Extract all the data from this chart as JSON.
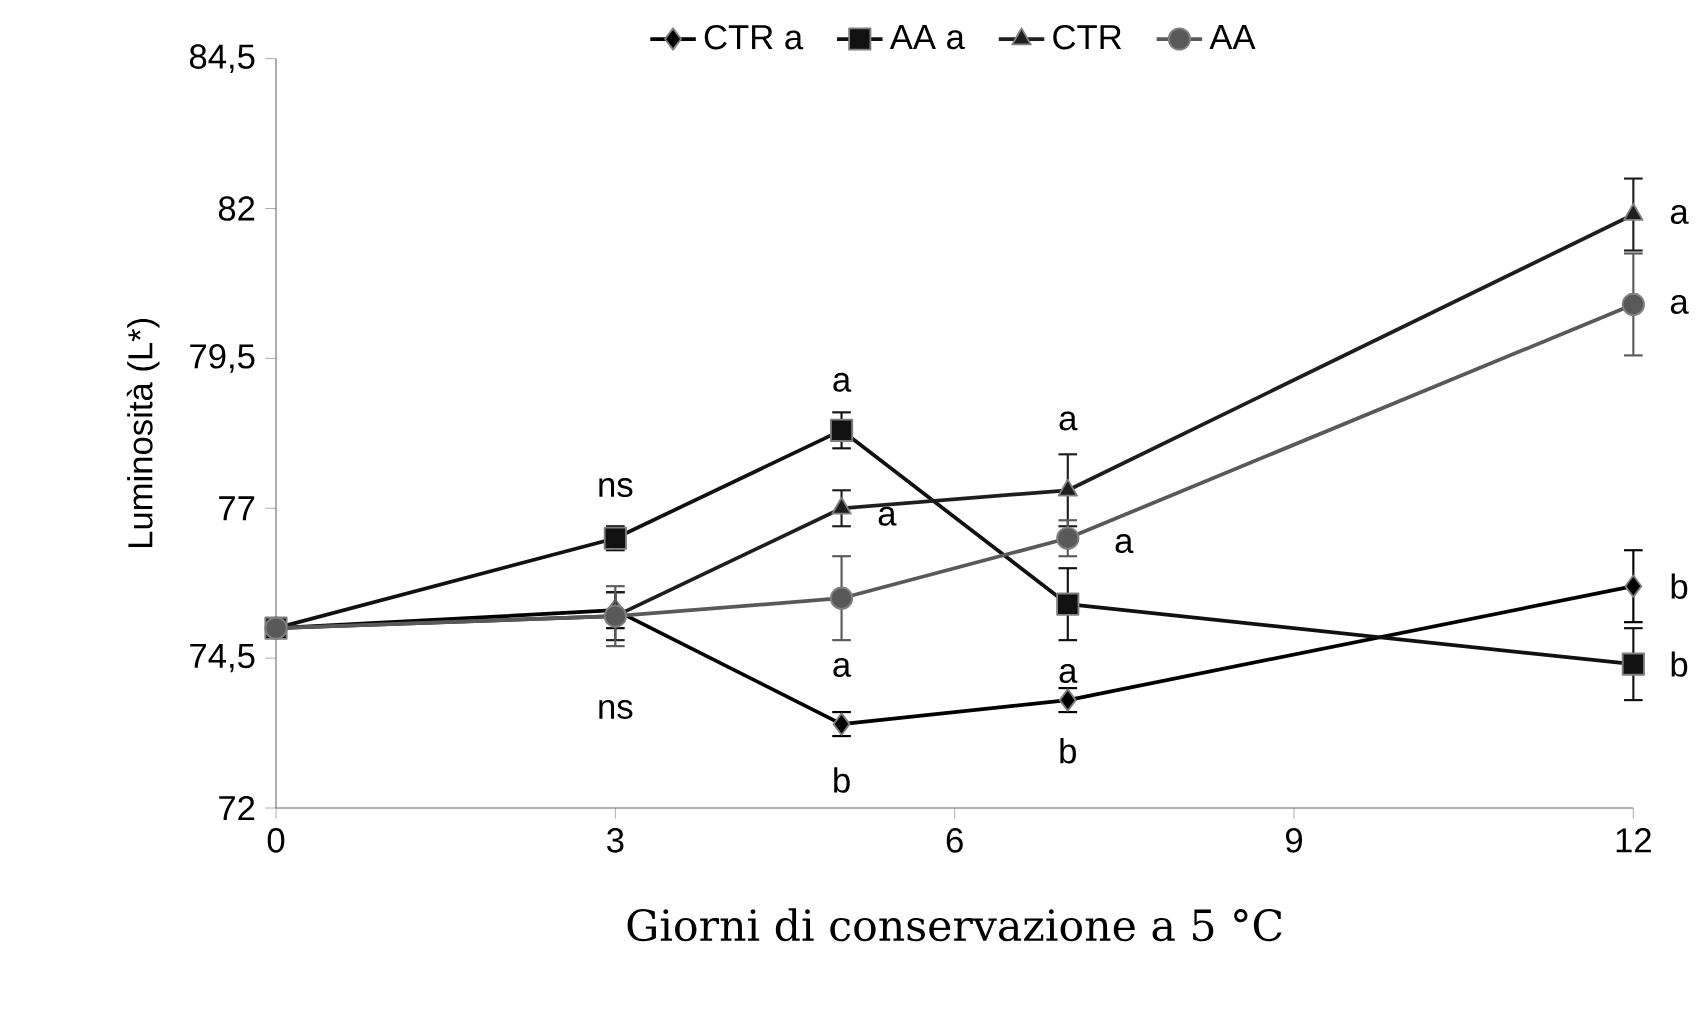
{
  "chart_data": {
    "type": "line",
    "xlabel": "Giorni di conservazione a 5 °C",
    "ylabel": "Luminosità (L*)",
    "x": [
      0,
      3,
      5,
      7,
      12
    ],
    "xlim": [
      0,
      12
    ],
    "xticks": [
      0,
      3,
      6,
      9,
      12
    ],
    "ylim": [
      72,
      84.5
    ],
    "yticks": [
      {
        "value": 72,
        "label": "72"
      },
      {
        "value": 74.5,
        "label": "74,5"
      },
      {
        "value": 77,
        "label": "77"
      },
      {
        "value": 79.5,
        "label": "79,5"
      },
      {
        "value": 82,
        "label": "82"
      },
      {
        "value": 84.5,
        "label": "84,5"
      }
    ],
    "grid": false,
    "legend": "top",
    "line_style": "solid",
    "series": [
      {
        "name": "CTR a",
        "color": "#000000",
        "marker": "diamond",
        "values": [
          75.0,
          75.3,
          73.4,
          73.8,
          75.7
        ],
        "errors": [
          null,
          0.3,
          0.2,
          0.2,
          0.6
        ]
      },
      {
        "name": "AA a",
        "color": "#111111",
        "marker": "square",
        "values": [
          75.0,
          76.5,
          78.3,
          75.4,
          74.4
        ],
        "errors": [
          null,
          0.2,
          0.3,
          0.6,
          0.6
        ]
      },
      {
        "name": "CTR",
        "color": "#1e1e1e",
        "marker": "triangle",
        "values": [
          75.0,
          75.2,
          77.0,
          77.3,
          81.9
        ],
        "errors": [
          null,
          0.4,
          0.3,
          0.6,
          0.6
        ]
      },
      {
        "name": "AA",
        "color": "#595959",
        "marker": "circle",
        "values": [
          75.0,
          75.2,
          75.5,
          76.5,
          80.4
        ],
        "errors": [
          null,
          0.5,
          0.7,
          0.3,
          0.85
        ]
      }
    ],
    "annotations": [
      {
        "text": "ns",
        "x": 3,
        "y": 76.5
      },
      {
        "text": "ns",
        "x": 3,
        "y": 75.2
      },
      {
        "text": "a",
        "x": 5,
        "y": 78.3
      },
      {
        "text": "a",
        "x": 5,
        "y": 77.0
      },
      {
        "text": "a",
        "x": 5,
        "y": 75.5
      },
      {
        "text": "b",
        "x": 5,
        "y": 73.4
      },
      {
        "text": "a",
        "x": 7,
        "y": 77.3
      },
      {
        "text": "a",
        "x": 7,
        "y": 76.5
      },
      {
        "text": "a",
        "x": 7,
        "y": 75.4
      },
      {
        "text": "b",
        "x": 7,
        "y": 73.8
      },
      {
        "text": "a",
        "x": 12,
        "y": 81.9
      },
      {
        "text": "a",
        "x": 12,
        "y": 80.4
      },
      {
        "text": "b",
        "x": 12,
        "y": 75.7
      },
      {
        "text": "b",
        "x": 12,
        "y": 74.4
      }
    ]
  }
}
